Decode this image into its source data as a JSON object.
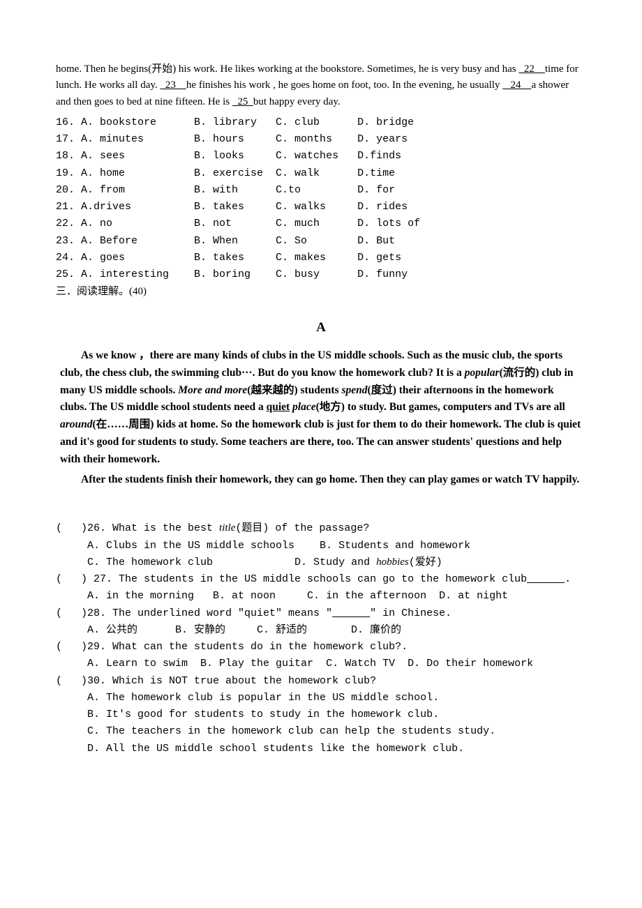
{
  "passage": {
    "text_html": "home. Then he begins(开始) his work. He likes working at the bookstore. Sometimes, he is very busy and has <span class='u'>&nbsp;&nbsp;22&nbsp;&nbsp;&nbsp;&nbsp;</span>time for lunch. He works all day. <span class='u'>&nbsp;&nbsp;23&nbsp;&nbsp;&nbsp;&nbsp;</span>he finishes his work , he goes home on foot, too. In the evening, he usually <span class='u'>&nbsp;&nbsp;&nbsp;24&nbsp;&nbsp;&nbsp;&nbsp;</span>a shower and then goes to bed at nine fifteen. He is <span class='u'>&nbsp;&nbsp;25&nbsp;&nbsp;</span>but happy every day."
  },
  "cloze": [
    {
      "n": "16",
      "a": "A. bookstore",
      "b": "B. library",
      "c": "C. club",
      "d": "D. bridge"
    },
    {
      "n": "17",
      "a": "A. minutes",
      "b": "B. hours",
      "c": "C. months",
      "d": "D. years"
    },
    {
      "n": "18",
      "a": "A. sees",
      "b": "B. looks",
      "c": "C. watches",
      "d": "D.finds"
    },
    {
      "n": "19",
      "a": "A. home",
      "b": "B. exercise",
      "c": "C. walk",
      "d": "D.time"
    },
    {
      "n": "20",
      "a": "A. from",
      "b": "B. with",
      "c": "C.to",
      "d": "D. for"
    },
    {
      "n": "21",
      "a": "A.drives",
      "b": "B. takes",
      "c": "C. walks",
      "d": "D. rides"
    },
    {
      "n": "22",
      "a": "A. no",
      "b": "B. not",
      "c": "C. much",
      "d": "D. lots of"
    },
    {
      "n": "23",
      "a": "A. Before",
      "b": "B. When",
      "c": "C. So",
      "d": "D. But"
    },
    {
      "n": "24",
      "a": "A. goes",
      "b": "B. takes",
      "c": "C. makes",
      "d": "D. gets"
    },
    {
      "n": "25",
      "a": "A. interesting",
      "b": "B. boring",
      "c": "C. busy",
      "d": "D. funny"
    }
  ],
  "cloze_cols": {
    "a": 0,
    "b": 18,
    "c": 31,
    "d": 44
  },
  "section3": "三．阅读理解。(40)",
  "bigA": "A",
  "reading": {
    "p1_html": "As we know ，there are many kinds of clubs in the US middle schools. Such as the music club, the sports club, the chess club, the swimming club···. But do you know the homework club? It is a <span class='italic'>popular</span>(流行的) club in many US middle schools. <span class='italic'>More and more</span>(越来越的) students <span class='italic'>spend</span>(度过) their afternoons in the homework clubs. The US middle school students need a <span class='u'>quiet</span> <span class='italic'>place</span>(地方) to study. But games, computers and TVs are all <span class='italic'>around</span>(在……周围) kids at home. So the homework club is just for them to do their homework. The club is quiet and it's good for students to study. Some teachers are there, too. The can answer students' questions and help with their homework.",
    "p2_html": "After the students finish their homework, they can go home. Then they can play games or watch TV happily."
  },
  "questions": [
    "(   )26. What is the best <span class='italic'>title</span>(题目) of the passage?",
    "     A. Clubs in the US middle schools    B. Students and homework",
    "     C. The homework club             D. Study and <span class='italic'>hobbies</span>(爱好)",
    "(   ) 27. The students in the US middle schools can go to the homework club<span class='u'>&nbsp;&nbsp;&nbsp;&nbsp;&nbsp;&nbsp;</span>.",
    "     A. in the morning   B. at noon     C. in the afternoon  D. at night",
    "(   )28. The underlined word \"quiet\" means \"<span class='u'>&nbsp;&nbsp;&nbsp;&nbsp;&nbsp;&nbsp;</span>\" in Chinese.",
    "     A. 公共的      B. 安静的     C. 舒适的       D. 廉价的",
    "(   )29. What can the students do in the homework club?.",
    "     A. Learn to swim  B. Play the guitar  C. Watch TV  D. Do their homework",
    "(   )30. Which is NOT true about the homework club?",
    "     A. The homework club is popular in the US middle school.",
    "     B. It's good for students to study in the homework club.",
    "     C. The teachers in the homework club can help the students study.",
    "     D. All the US middle school students like the homework club."
  ]
}
